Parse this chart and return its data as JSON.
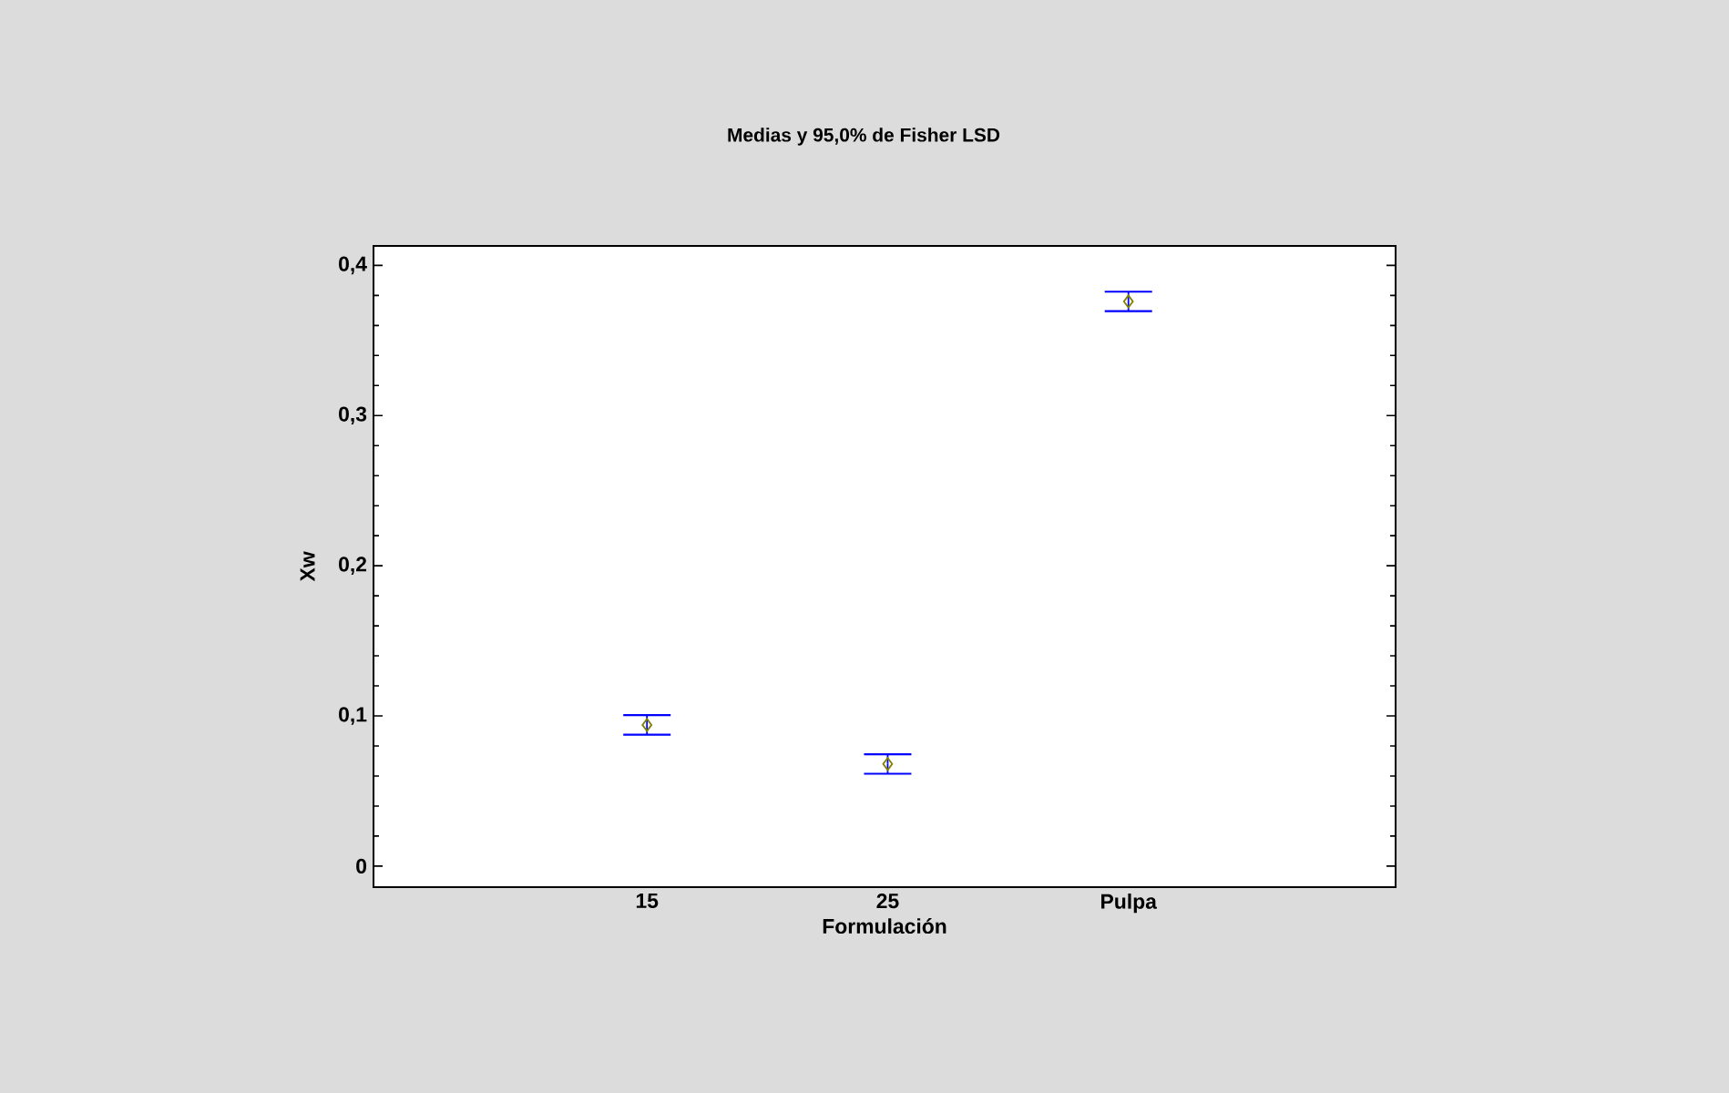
{
  "chart_data": {
    "type": "scatter",
    "title": "Medias y 95,0% de Fisher LSD",
    "xlabel": "Formulación",
    "ylabel": "Xw",
    "categories": [
      "15",
      "25",
      "Pulpa"
    ],
    "values": [
      0.094,
      0.068,
      0.376
    ],
    "errors": [
      0.0065,
      0.0065,
      0.0065
    ],
    "color": "#808000",
    "marker": "diamond",
    "ylim": [
      -0.014,
      0.413
    ],
    "yticks": [
      0,
      {
        "value": 0.1,
        "label": "0,1"
      },
      {
        "value": 0.2,
        "label": "0,2"
      },
      {
        "value": 0.3,
        "label": "0,3"
      },
      {
        "value": 0.4,
        "label": "0,4"
      }
    ],
    "grid": false
  }
}
